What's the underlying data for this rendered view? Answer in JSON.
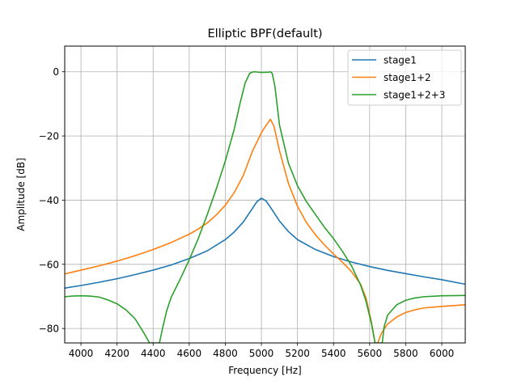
{
  "chart_data": {
    "type": "line",
    "title": "Elliptic BPF(default)",
    "xlabel": "Frequency [Hz]",
    "ylabel": "Amplitude [dB]",
    "xlim": [
      3910,
      6130
    ],
    "ylim": [
      -84.5,
      8
    ],
    "xticks": [
      4000,
      4200,
      4400,
      4600,
      4800,
      5000,
      5200,
      5400,
      5600,
      5800,
      6000
    ],
    "xtick_labels": [
      "4000",
      "4200",
      "4400",
      "4600",
      "4800",
      "5000",
      "5200",
      "5400",
      "5600",
      "5800",
      "6000"
    ],
    "yticks": [
      0,
      -20,
      -40,
      -60,
      -80
    ],
    "ytick_labels": [
      "0",
      "−20",
      "−40",
      "−60",
      "−80"
    ],
    "grid": true,
    "legend_position": "top-right",
    "series": [
      {
        "name": "stage1",
        "color": "#1f77b4",
        "x": [
          3910,
          4000,
          4100,
          4200,
          4300,
          4400,
          4500,
          4600,
          4700,
          4800,
          4850,
          4900,
          4950,
          4975,
          5000,
          5025,
          5050,
          5100,
          5150,
          5200,
          5300,
          5400,
          5500,
          5600,
          5700,
          5800,
          5900,
          6000,
          6130
        ],
        "y": [
          -67.4,
          -66.6,
          -65.6,
          -64.5,
          -63.2,
          -61.8,
          -60.2,
          -58.2,
          -55.8,
          -52.3,
          -49.9,
          -46.8,
          -42.6,
          -40.5,
          -39.4,
          -40.2,
          -42.2,
          -46.5,
          -49.8,
          -52.3,
          -55.4,
          -57.6,
          -59.3,
          -60.7,
          -61.9,
          -62.9,
          -63.9,
          -64.8,
          -66.2
        ]
      },
      {
        "name": "stage1+2",
        "color": "#ff7f0e",
        "x": [
          3910,
          4000,
          4100,
          4200,
          4300,
          4400,
          4500,
          4600,
          4650,
          4700,
          4750,
          4800,
          4850,
          4900,
          4950,
          5000,
          5030,
          5050,
          5070,
          5100,
          5150,
          5200,
          5250,
          5300,
          5350,
          5400,
          5450,
          5500,
          5550,
          5580,
          5610,
          5630,
          5645,
          5665,
          5700,
          5750,
          5800,
          5850,
          5900,
          6000,
          6130
        ],
        "y": [
          -63.0,
          -61.8,
          -60.5,
          -59.0,
          -57.3,
          -55.4,
          -53.2,
          -50.6,
          -49.0,
          -47.1,
          -44.6,
          -41.6,
          -37.6,
          -32.3,
          -24.8,
          -19.0,
          -16.4,
          -14.8,
          -17.0,
          -24.5,
          -34.8,
          -41.9,
          -47.0,
          -50.8,
          -54.0,
          -56.8,
          -59.4,
          -62.3,
          -66.2,
          -70.5,
          -78.0,
          -84.5,
          -84.5,
          -81.5,
          -78.6,
          -76.4,
          -75.0,
          -74.2,
          -73.6,
          -73.1,
          -72.6
        ]
      },
      {
        "name": "stage1+2+3",
        "color": "#2ca02c",
        "x": [
          3910,
          3950,
          4000,
          4050,
          4100,
          4150,
          4200,
          4250,
          4300,
          4350,
          4380,
          4395,
          4410,
          4425,
          4435,
          4450,
          4475,
          4500,
          4550,
          4600,
          4650,
          4700,
          4750,
          4800,
          4850,
          4880,
          4910,
          4935,
          4950,
          4960,
          5000,
          5040,
          5050,
          5060,
          5075,
          5100,
          5150,
          5200,
          5250,
          5300,
          5350,
          5400,
          5450,
          5500,
          5550,
          5580,
          5610,
          5630,
          5645,
          5660,
          5670,
          5680,
          5700,
          5750,
          5800,
          5850,
          5900,
          6000,
          6130
        ],
        "y": [
          -70.1,
          -69.9,
          -69.8,
          -69.9,
          -70.2,
          -71.1,
          -72.3,
          -74.2,
          -77.0,
          -81.5,
          -84.5,
          -84.5,
          -84.5,
          -84.5,
          -84.5,
          -80.5,
          -74.5,
          -70.3,
          -64.6,
          -58.6,
          -52.0,
          -44.5,
          -36.5,
          -27.8,
          -17.8,
          -10.2,
          -3.5,
          -0.5,
          -0.1,
          0.0,
          -0.2,
          -0.1,
          0.0,
          -0.5,
          -4.5,
          -16.5,
          -28.5,
          -35.5,
          -40.5,
          -44.5,
          -48.5,
          -52.0,
          -56.0,
          -60.5,
          -66.5,
          -71.5,
          -78.5,
          -84.5,
          -84.5,
          -84.5,
          -84.5,
          -79.5,
          -75.8,
          -72.6,
          -71.2,
          -70.5,
          -70.1,
          -69.8,
          -69.7
        ]
      }
    ]
  }
}
